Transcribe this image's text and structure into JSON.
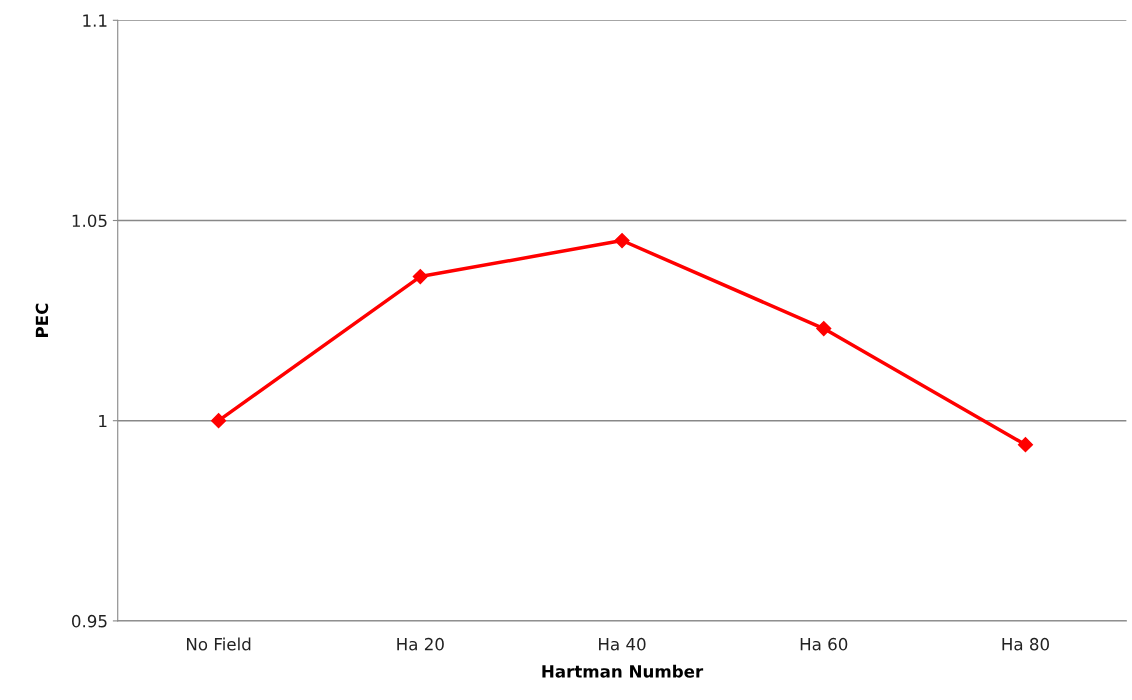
{
  "chart_data": {
    "type": "line",
    "xlabel": "Hartman Number",
    "ylabel": "PEC",
    "categories": [
      "No Field",
      "Ha 20",
      "Ha 40",
      "Ha 60",
      "Ha 80"
    ],
    "series": [
      {
        "color": "#ff0000",
        "values": [
          1.0,
          1.036,
          1.045,
          1.023,
          0.994
        ]
      }
    ],
    "ylim": [
      0.95,
      1.1
    ],
    "yticks": [
      0.95,
      1,
      1.05,
      1.1
    ],
    "grid": "y",
    "marker": "diamond",
    "line_style": "solid"
  }
}
